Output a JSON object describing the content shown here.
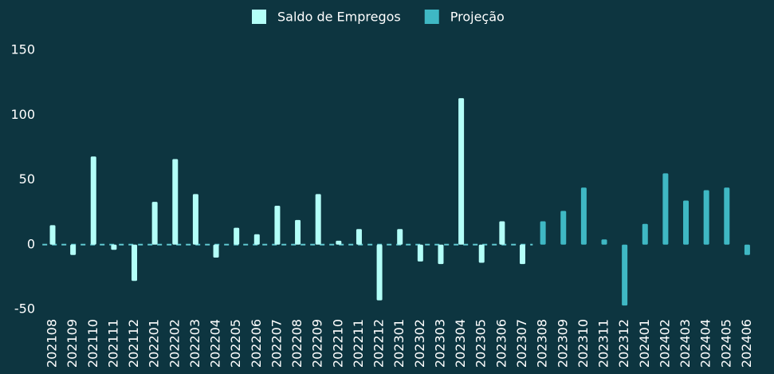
{
  "chart_data": {
    "type": "bar",
    "categories": [
      "202108",
      "202109",
      "202110",
      "202111",
      "202112",
      "202201",
      "202202",
      "202203",
      "202204",
      "202205",
      "202206",
      "202207",
      "202208",
      "202209",
      "202210",
      "202211",
      "202212",
      "202301",
      "202302",
      "202303",
      "202304",
      "202305",
      "202306",
      "202307",
      "202308",
      "202309",
      "202310",
      "202311",
      "202312",
      "202401",
      "202402",
      "202403",
      "202404",
      "202405",
      "202406"
    ],
    "series": [
      {
        "name": "Saldo de Empregos",
        "color": "#b3fff8",
        "values": [
          15,
          -8,
          68,
          -4,
          -28,
          33,
          66,
          39,
          -10,
          13,
          8,
          30,
          19,
          39,
          3,
          12,
          -43,
          12,
          -13,
          -15,
          113,
          -14,
          18,
          -15,
          null,
          null,
          null,
          null,
          null,
          null,
          null,
          null,
          null,
          null,
          null
        ]
      },
      {
        "name": "Projeção",
        "color": "#3fb8c4",
        "values": [
          null,
          null,
          null,
          null,
          null,
          null,
          null,
          null,
          null,
          null,
          null,
          null,
          null,
          null,
          null,
          null,
          null,
          null,
          null,
          null,
          null,
          null,
          null,
          null,
          18,
          26,
          44,
          4,
          -47,
          16,
          55,
          34,
          42,
          44,
          -8
        ]
      }
    ],
    "ylim": [
      -50,
      150
    ],
    "yticks": [
      -50,
      0,
      50,
      100,
      150
    ],
    "legend": "top"
  }
}
